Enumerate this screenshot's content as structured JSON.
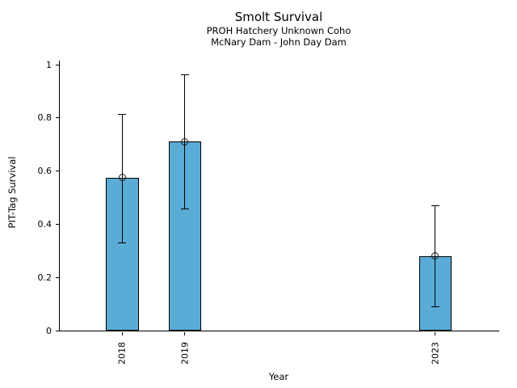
{
  "figure": {
    "title": "Smolt Survival",
    "subtitle_line1": "PROH Hatchery Unknown Coho",
    "subtitle_line2": "McNary Dam - John Day Dam"
  },
  "chart_data": {
    "type": "bar",
    "title": "Smolt Survival",
    "subtitles": [
      "PROH Hatchery Unknown Coho",
      "McNary Dam - John Day Dam"
    ],
    "xlabel": "Year",
    "ylabel": "PIT-Tag Survival",
    "categories": [
      "2018",
      "2019",
      "2023"
    ],
    "x": [
      2018,
      2019,
      2023
    ],
    "values": [
      0.575,
      0.71,
      0.28
    ],
    "error_low": [
      0.33,
      0.46,
      0.09
    ],
    "error_high": [
      0.815,
      0.965,
      0.47
    ],
    "xlim": [
      2017.0,
      2024.02
    ],
    "ylim": [
      0,
      1.0152
    ],
    "yticks": [
      0,
      0.2,
      0.4,
      0.6,
      0.8,
      1
    ],
    "ytick_labels": [
      "0",
      "0.2",
      "0.4",
      "0.6",
      "0.8",
      "1"
    ],
    "xtick_rotation_deg": 90,
    "bar_width_years": 0.52,
    "bar_color": "#5aabd6",
    "bar_edge_color": "#000000",
    "errorbar_color": "#000000",
    "marker": "open-circle",
    "grid": false,
    "legend": "none",
    "background_color": "#ffffff"
  }
}
